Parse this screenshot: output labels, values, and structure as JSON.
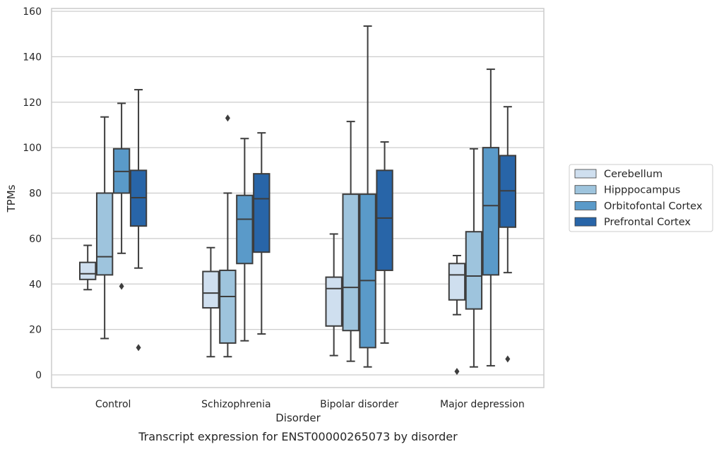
{
  "chart_data": {
    "type": "box",
    "title": "",
    "xlabel": "Disorder",
    "ylabel": "TPMs",
    "caption": "Transcript expression for ENST00000265073 by disorder",
    "ylim": [
      -5,
      161
    ],
    "yticks": [
      0,
      20,
      40,
      60,
      80,
      100,
      120,
      140,
      160
    ],
    "grid": "y",
    "legend_position": "right",
    "categories": [
      "Control",
      "Schizophrenia",
      "Bipolar disorder",
      "Major depression"
    ],
    "series": [
      {
        "name": "Cerebellum",
        "color": "#cfdfef",
        "boxes": [
          {
            "whisker_low": 37.5,
            "q1": 42,
            "median": 44.5,
            "q3": 49.5,
            "whisker_high": 57,
            "outliers": []
          },
          {
            "whisker_low": 8,
            "q1": 29.5,
            "median": 36,
            "q3": 45.5,
            "whisker_high": 56,
            "outliers": []
          },
          {
            "whisker_low": 8.5,
            "q1": 21.5,
            "median": 38,
            "q3": 43,
            "whisker_high": 62,
            "outliers": []
          },
          {
            "whisker_low": 26.5,
            "q1": 33,
            "median": 44,
            "q3": 49,
            "whisker_high": 52.5,
            "outliers": [
              1.5
            ]
          }
        ]
      },
      {
        "name": "Hipppocampus",
        "color": "#9ec4dd",
        "boxes": [
          {
            "whisker_low": 16,
            "q1": 44,
            "median": 52,
            "q3": 80,
            "whisker_high": 113.5,
            "outliers": []
          },
          {
            "whisker_low": 8,
            "q1": 14,
            "median": 34.5,
            "q3": 46,
            "whisker_high": 80,
            "outliers": [
              113
            ]
          },
          {
            "whisker_low": 6,
            "q1": 19.5,
            "median": 38.5,
            "q3": 79.5,
            "whisker_high": 111.5,
            "outliers": []
          },
          {
            "whisker_low": 3.5,
            "q1": 29,
            "median": 43.5,
            "q3": 63,
            "whisker_high": 99.5,
            "outliers": []
          }
        ]
      },
      {
        "name": "Orbitofontal Cortex",
        "color": "#5a9ac9",
        "boxes": [
          {
            "whisker_low": 53.5,
            "q1": 80,
            "median": 89.5,
            "q3": 99.5,
            "whisker_high": 119.5,
            "outliers": [
              39
            ]
          },
          {
            "whisker_low": 15,
            "q1": 49,
            "median": 68.5,
            "q3": 79,
            "whisker_high": 104,
            "outliers": []
          },
          {
            "whisker_low": 3.5,
            "q1": 12,
            "median": 41.5,
            "q3": 79.5,
            "whisker_high": 153.5,
            "outliers": []
          },
          {
            "whisker_low": 4,
            "q1": 44,
            "median": 74.5,
            "q3": 100,
            "whisker_high": 134.5,
            "outliers": []
          }
        ]
      },
      {
        "name": "Prefrontal Cortex",
        "color": "#2865a8",
        "boxes": [
          {
            "whisker_low": 47,
            "q1": 65.5,
            "median": 78,
            "q3": 90,
            "whisker_high": 125.5,
            "outliers": [
              12
            ]
          },
          {
            "whisker_low": 18,
            "q1": 54,
            "median": 77.5,
            "q3": 88.5,
            "whisker_high": 106.5,
            "outliers": []
          },
          {
            "whisker_low": 14,
            "q1": 46,
            "median": 69,
            "q3": 90,
            "whisker_high": 102.5,
            "outliers": []
          },
          {
            "whisker_low": 45,
            "q1": 65,
            "median": 81,
            "q3": 96.5,
            "whisker_high": 118,
            "outliers": [
              7
            ]
          }
        ]
      }
    ]
  }
}
